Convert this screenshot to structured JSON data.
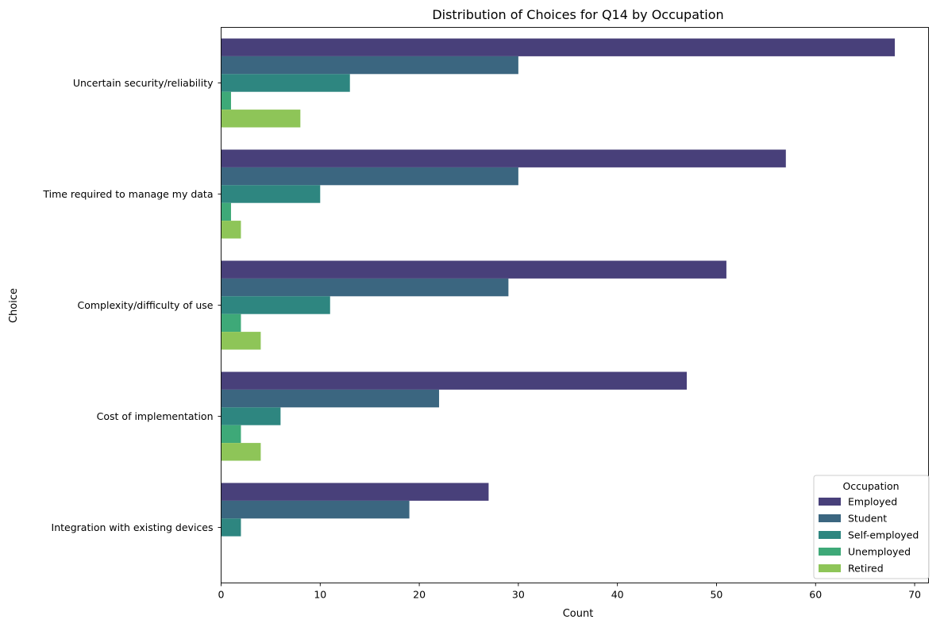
{
  "chart_data": {
    "type": "bar",
    "orientation": "horizontal",
    "title": "Distribution of Choices for Q14 by Occupation",
    "xlabel": "Count",
    "ylabel": "Choice",
    "xlim": [
      0,
      71.4
    ],
    "xticks": [
      0,
      10,
      20,
      30,
      40,
      50,
      60,
      70
    ],
    "grid": false,
    "legend": {
      "title": "Occupation",
      "placement": "lower-right"
    },
    "categories": [
      "Uncertain security/reliability",
      "Time required to manage my data",
      "Complexity/difficulty of use",
      "Cost of implementation",
      "Integration with existing devices"
    ],
    "series": [
      {
        "name": "Employed",
        "color": "#48407a",
        "values": [
          68,
          57,
          51,
          47,
          27
        ]
      },
      {
        "name": "Student",
        "color": "#3b6680",
        "values": [
          30,
          30,
          29,
          22,
          19
        ]
      },
      {
        "name": "Self-employed",
        "color": "#2e8680",
        "values": [
          13,
          10,
          11,
          6,
          2
        ]
      },
      {
        "name": "Unemployed",
        "color": "#3ea978",
        "values": [
          1,
          1,
          2,
          2,
          0
        ]
      },
      {
        "name": "Retired",
        "color": "#8ec558",
        "values": [
          8,
          2,
          4,
          4,
          0
        ]
      }
    ]
  }
}
